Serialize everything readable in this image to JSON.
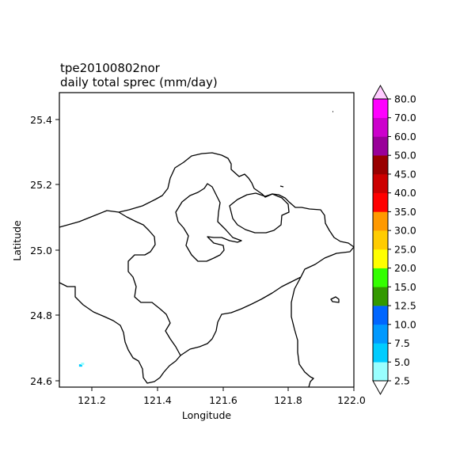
{
  "title": {
    "line1": "tpe20100802nor",
    "line2": "daily total sprec (mm/day)"
  },
  "axes": {
    "xlabel": "Longitude",
    "ylabel": "Latitude",
    "xlim": [
      121.1,
      122.0
    ],
    "ylim": [
      24.58,
      25.48
    ],
    "xticks": [
      "121.2",
      "121.4",
      "121.6",
      "121.8",
      "122.0"
    ],
    "yticks": [
      "24.6",
      "24.8",
      "25.0",
      "25.2",
      "25.4"
    ]
  },
  "colorbar": {
    "levels": [
      "2.5",
      "5.0",
      "7.5",
      "10.0",
      "12.5",
      "15.0",
      "20.0",
      "25.0",
      "30.0",
      "35.0",
      "40.0",
      "45.0",
      "50.0",
      "60.0",
      "70.0",
      "80.0"
    ],
    "colors": [
      "#99ffff",
      "#00ccff",
      "#0099ff",
      "#0066ff",
      "#339900",
      "#33ff00",
      "#ffff00",
      "#ffcc00",
      "#ff9900",
      "#ff0000",
      "#cc0000",
      "#990000",
      "#990099",
      "#cc00cc",
      "#ff00ff"
    ],
    "under_color": "#ffffff",
    "over_color": "#ffccff"
  },
  "precip_cells": [
    {
      "lon": 121.165,
      "lat": 24.645,
      "color": "#00ccff"
    },
    {
      "lon": 121.171,
      "lat": 24.65,
      "color": "#99ffff"
    }
  ]
}
